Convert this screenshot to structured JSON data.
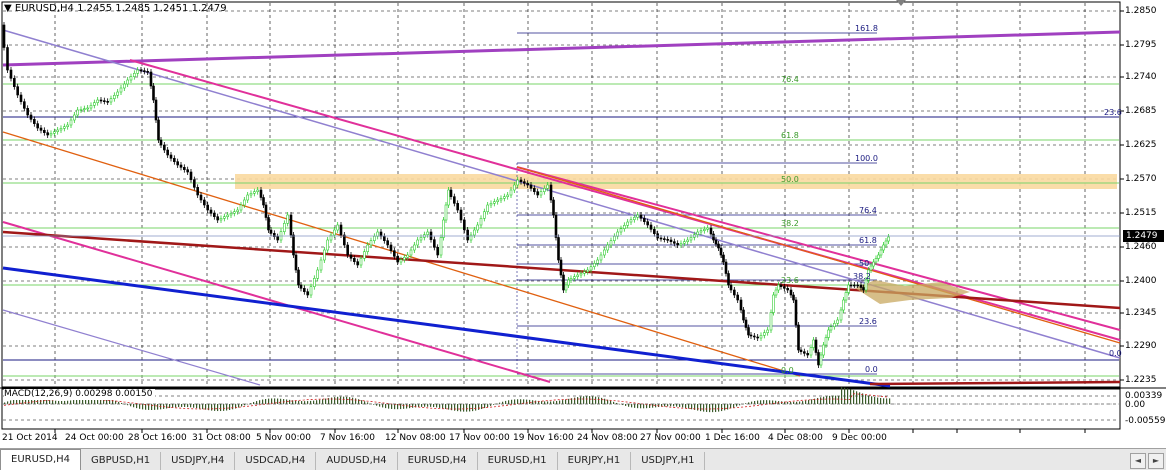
{
  "window": {
    "symbol_header": "▼ EURUSD,H4",
    "ohlc": "1.2455 1.2485 1.2451 1.2479"
  },
  "colors": {
    "background": "#ffffff",
    "grid": "#000000",
    "bull_candle": "#32cd32",
    "bear_candle": "#000000",
    "trendline_magenta": "#e0309a",
    "trendline_purple": "#a040c0",
    "trendline_blue": "#1020d0",
    "trendline_darkred": "#a01818",
    "trendline_orange": "#e06010",
    "trendline_lavender": "#9080d0",
    "fib_navy": "#1a1a80",
    "fib_green": "#7ad46a",
    "zone": "#f9d9a0",
    "current_price_bg": "#000000"
  },
  "price_axis": {
    "labels": [
      "1.2850",
      "1.2795",
      "1.2740",
      "1.2685",
      "1.2625",
      "1.2570",
      "1.2515",
      "1.2460",
      "1.2400",
      "1.2345",
      "1.2290",
      "1.2235"
    ],
    "current_price": "1.2479"
  },
  "macd": {
    "label": "MACD(12,26,9) 0.00298 0.00150",
    "axis_labels": [
      "0.00339",
      "0.00",
      "-0.00559"
    ]
  },
  "time_axis": {
    "labels": [
      "21 Oct 2014",
      "24 Oct 00:00",
      "28 Oct 16:00",
      "31 Oct 08:00",
      "5 Nov 00:00",
      "7 Nov 16:00",
      "12 Nov 08:00",
      "17 Nov 00:00",
      "19 Nov 16:00",
      "24 Nov 08:00",
      "27 Nov 00:00",
      "1 Dec 16:00",
      "4 Dec 08:00",
      "9 Dec 00:00"
    ]
  },
  "fib_levels": {
    "navy_labels": [
      "161.8",
      "100.0",
      "76.4",
      "61.8",
      "50",
      "38.2",
      "23.6",
      "0.0"
    ],
    "green_labels": [
      "76.4",
      "61.8",
      "50.0",
      "38.2",
      "23.6",
      "0.0"
    ],
    "right_labels": [
      "23.6",
      "0.0"
    ]
  },
  "tabs": [
    {
      "label": "EURUSD,H4",
      "active": true
    },
    {
      "label": "GBPUSD,H1",
      "active": false
    },
    {
      "label": "USDJPY,H4",
      "active": false
    },
    {
      "label": "USDCAD,H4",
      "active": false
    },
    {
      "label": "AUDUSD,H4",
      "active": false
    },
    {
      "label": "EURUSD,H4",
      "active": false
    },
    {
      "label": "EURUSD,H1",
      "active": false
    },
    {
      "label": "EURJPY,H1",
      "active": false
    },
    {
      "label": "USDJPY,H1",
      "active": false
    }
  ],
  "tab_nav": {
    "left": "◄",
    "right": "►"
  }
}
